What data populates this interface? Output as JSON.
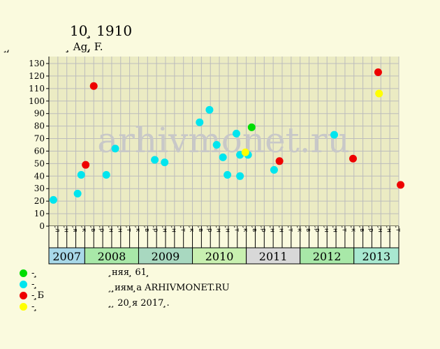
{
  "header": {
    "title": "10 ̧̧̧ 1910",
    "subtitle": "̧̧̧ Ag,̧̧̧ F.",
    "y_unit": "̧̧,̧̧"
  },
  "legend": [
    {
      "label": "- ̧̧̧",
      "color": "#00dd00"
    },
    {
      "label": "- ̧̧̧",
      "color": "#00e5ee"
    },
    {
      "label": "- ̧̧̧̧̧Б",
      "color": "#ee0000"
    },
    {
      "label": "- ̧̧",
      "color": "#ffff00"
    }
  ],
  "info": [
    "̧̧няя ̧̧ 61 ̧̧",
    "̧ ̧̧̧̧иям ̧̧а ARHIVMONET.RU",
    "̧̧̧ ̧ 20 ̧я 2017 ̧̧."
  ],
  "watermark": "arhivmonet.ru",
  "colors": {
    "background": "#fafade",
    "plot_background": "#ebebc3",
    "grid": "#bcbcbc",
    "watermark": "#c8c8c8"
  },
  "chart_data": {
    "type": "scatter",
    "ylim": [
      0,
      130
    ],
    "yticks": [
      0,
      10,
      20,
      30,
      40,
      50,
      60,
      70,
      80,
      90,
      100,
      110,
      120,
      130
    ],
    "grid": true,
    "month_labels": [
      "̧̧л",
      "̧̧н",
      "̧̧я",
      "̧̧к",
      "̧̧в",
      "̧̧р",
      "̧̧н",
      "̧̧н",
      "̧̧т",
      "̧̧к",
      "̧̧в",
      "̧̧р",
      "̧̧н",
      "̧̧н",
      "̧̧т",
      "̧̧к",
      "̧̧в",
      "̧̧р",
      "̧̧н",
      "̧̧н",
      "̧̧т",
      "̧̧к",
      "̧̧в",
      "̧̧р",
      "̧̧н",
      "̧̧н",
      "̧̧т",
      "̧̧к",
      "̧̧в",
      "̧̧р",
      "̧̧н",
      "̧̧н",
      "̧̧т",
      "̧̧к",
      "̧̧в",
      "̧̧р",
      "̧̧н",
      "̧̧н",
      "̧̧т"
    ],
    "years": [
      {
        "label": "2007",
        "slots": 4,
        "color": "#a8d8e8"
      },
      {
        "label": "2008",
        "slots": 6,
        "color": "#a8e8a8"
      },
      {
        "label": "2009",
        "slots": 6,
        "color": "#a8d8c0"
      },
      {
        "label": "2010",
        "slots": 6,
        "color": "#c8f0b0"
      },
      {
        "label": "2011",
        "slots": 6,
        "color": "#d8d8d8"
      },
      {
        "label": "2012",
        "slots": 6,
        "color": "#a8e8a8"
      },
      {
        "label": "2013",
        "slots": 5,
        "color": "#a8e8d0"
      }
    ],
    "series": [
      {
        "category": "green",
        "color": "#00dd00",
        "points": [
          [
            22.6,
            79
          ]
        ]
      },
      {
        "category": "cyan",
        "color": "#00e5ee",
        "points": [
          [
            0.5,
            21
          ],
          [
            3.2,
            26
          ],
          [
            3.6,
            41
          ],
          [
            6.4,
            41
          ],
          [
            7.4,
            62
          ],
          [
            11.8,
            53
          ],
          [
            12.9,
            51
          ],
          [
            16.8,
            83
          ],
          [
            17.9,
            93
          ],
          [
            18.7,
            65
          ],
          [
            19.4,
            55
          ],
          [
            19.9,
            41
          ],
          [
            20.9,
            74
          ],
          [
            21.3,
            57
          ],
          [
            21.3,
            40
          ],
          [
            22.2,
            57
          ],
          [
            25.1,
            45
          ],
          [
            31.8,
            73
          ]
        ]
      },
      {
        "category": "red",
        "color": "#ee0000",
        "points": [
          [
            4.1,
            49
          ],
          [
            5.0,
            112
          ],
          [
            25.7,
            52
          ],
          [
            33.9,
            54
          ],
          [
            36.7,
            123
          ],
          [
            39.2,
            33
          ]
        ]
      },
      {
        "category": "yellow",
        "color": "#ffff00",
        "points": [
          [
            21.9,
            59
          ],
          [
            36.8,
            106
          ]
        ]
      }
    ]
  }
}
